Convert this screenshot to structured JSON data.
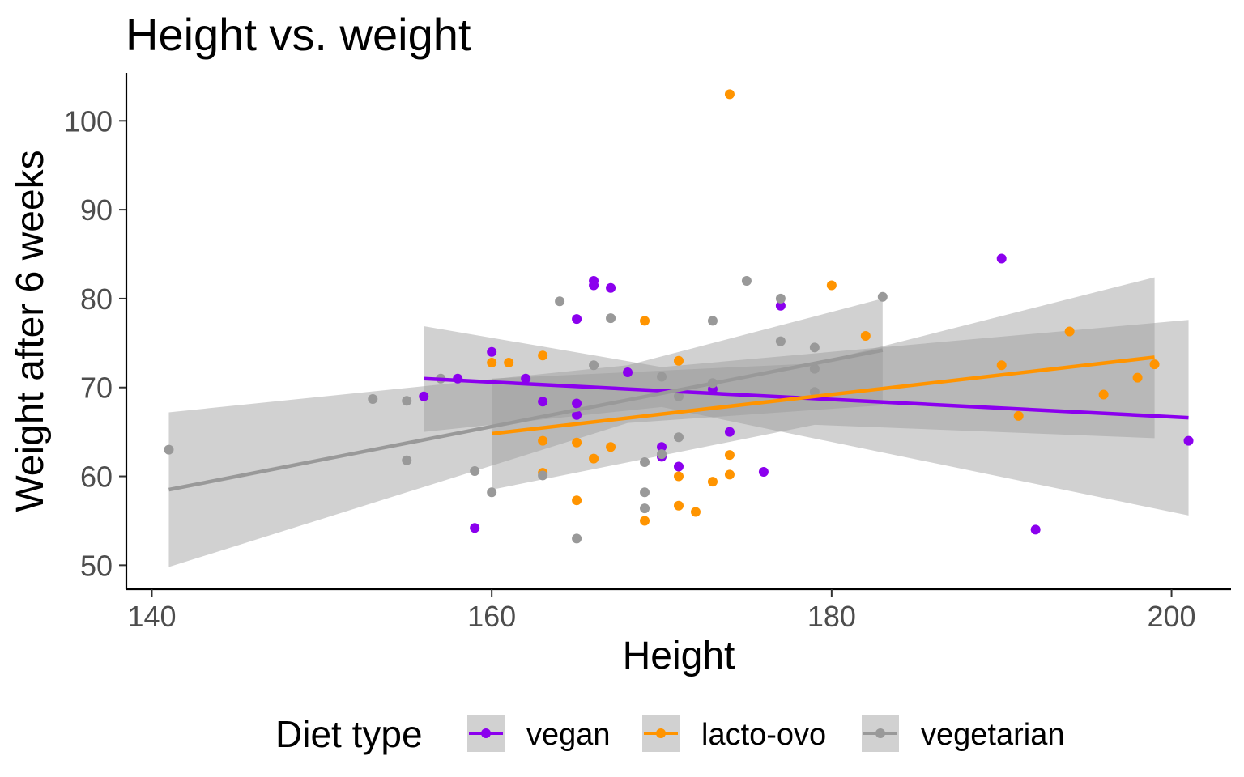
{
  "chart_data": {
    "type": "scatter",
    "title": "Height vs. weight",
    "xlabel": "Height",
    "ylabel": "Weight after 6 weeks",
    "xlim": [
      138.5,
      203.5
    ],
    "ylim": [
      47.3,
      105.4
    ],
    "x_ticks": [
      140,
      160,
      180,
      200
    ],
    "y_ticks": [
      50,
      60,
      70,
      80,
      90,
      100
    ],
    "grid": false,
    "legend": {
      "title": "Diet type",
      "position": "bottom"
    },
    "series": [
      {
        "name": "vegan",
        "color": "#8B00EE",
        "points": [
          [
            156,
            69.0
          ],
          [
            158,
            71.0
          ],
          [
            159,
            54.2
          ],
          [
            160,
            74.0
          ],
          [
            162,
            71.0
          ],
          [
            163,
            68.4
          ],
          [
            165,
            77.7
          ],
          [
            165,
            68.2
          ],
          [
            165,
            66.9
          ],
          [
            166,
            82.0
          ],
          [
            166,
            81.5
          ],
          [
            167,
            81.2
          ],
          [
            168,
            71.7
          ],
          [
            170,
            63.3
          ],
          [
            170,
            62.2
          ],
          [
            171,
            61.1
          ],
          [
            173,
            69.8
          ],
          [
            174,
            65.0
          ],
          [
            176,
            60.5
          ],
          [
            177,
            79.2
          ],
          [
            190,
            84.5
          ],
          [
            192,
            54.0
          ],
          [
            201,
            64.0
          ]
        ],
        "trend": {
          "x": [
            156,
            201
          ],
          "y": [
            71.0,
            66.6
          ]
        },
        "band": {
          "x": [
            156,
            170,
            201
          ],
          "upper": [
            76.9,
            72.3,
            77.6
          ],
          "lower": [
            65.0,
            67.8,
            55.6
          ]
        }
      },
      {
        "name": "lacto-ovo",
        "color": "#FF9400",
        "points": [
          [
            160,
            72.8
          ],
          [
            161,
            72.8
          ],
          [
            163,
            73.6
          ],
          [
            163,
            64.0
          ],
          [
            163,
            60.4
          ],
          [
            165,
            63.8
          ],
          [
            165,
            57.3
          ],
          [
            166,
            62.0
          ],
          [
            167,
            63.3
          ],
          [
            169,
            77.5
          ],
          [
            169,
            55.0
          ],
          [
            171,
            73.0
          ],
          [
            171,
            60.0
          ],
          [
            171,
            56.7
          ],
          [
            172,
            56.0
          ],
          [
            173,
            59.4
          ],
          [
            174,
            103.0
          ],
          [
            174,
            62.4
          ],
          [
            174,
            60.2
          ],
          [
            180,
            81.5
          ],
          [
            182,
            75.8
          ],
          [
            190,
            72.5
          ],
          [
            191,
            66.8
          ],
          [
            194,
            76.3
          ],
          [
            196,
            69.2
          ],
          [
            198,
            71.1
          ],
          [
            199,
            72.6
          ]
        ],
        "trend": {
          "x": [
            160,
            199
          ],
          "y": [
            64.8,
            73.4
          ]
        },
        "band": {
          "x": [
            160,
            179,
            199
          ],
          "upper": [
            71.0,
            72.7,
            82.4
          ],
          "lower": [
            58.5,
            65.8,
            64.3
          ]
        }
      },
      {
        "name": "vegetarian",
        "color": "#999999",
        "points": [
          [
            141,
            63.0
          ],
          [
            153,
            68.7
          ],
          [
            155,
            68.5
          ],
          [
            155,
            61.8
          ],
          [
            157,
            71.0
          ],
          [
            159,
            60.6
          ],
          [
            160,
            58.2
          ],
          [
            163,
            60.1
          ],
          [
            164,
            79.7
          ],
          [
            165,
            53.0
          ],
          [
            166,
            72.5
          ],
          [
            167,
            77.8
          ],
          [
            169,
            61.6
          ],
          [
            169,
            58.2
          ],
          [
            169,
            56.4
          ],
          [
            170,
            71.2
          ],
          [
            170,
            62.5
          ],
          [
            171,
            69.0
          ],
          [
            171,
            64.4
          ],
          [
            173,
            77.5
          ],
          [
            173,
            70.5
          ],
          [
            175,
            82.0
          ],
          [
            177,
            80.0
          ],
          [
            177,
            75.2
          ],
          [
            179,
            74.5
          ],
          [
            179,
            72.1
          ],
          [
            179,
            69.5
          ],
          [
            183,
            80.2
          ]
        ],
        "trend": {
          "x": [
            141,
            183
          ],
          "y": [
            58.5,
            74.2
          ]
        },
        "band": {
          "x": [
            141,
            168,
            183
          ],
          "upper": [
            67.2,
            72.5,
            80.0
          ],
          "lower": [
            49.8,
            66.0,
            68.0
          ]
        }
      }
    ]
  }
}
